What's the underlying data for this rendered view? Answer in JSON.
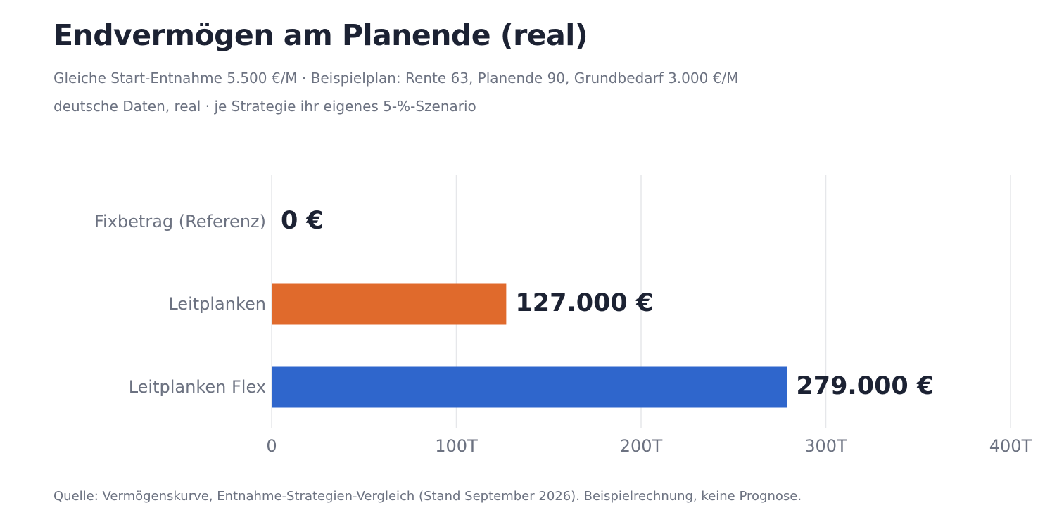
{
  "header": {
    "title": "Endvermögen am Planende (real)",
    "subtitle_line1": "Gleiche Start-Entnahme 5.500 €/M · Beispielplan: Rente 63, Planende 90, Grundbedarf 3.000 €/M",
    "subtitle_line2": "deutsche Daten, real · je Strategie ihr eigenes 5-%-Szenario"
  },
  "footer": {
    "source": "Quelle: Vermögenskurve, Entnahme-Strategien-Vergleich (Stand September 2026). Beispielrechnung, keine Prognose."
  },
  "chart_data": {
    "type": "bar",
    "orientation": "horizontal",
    "title": "Endvermögen am Planende (real)",
    "categories": [
      "Fixbetrag (Referenz)",
      "Leitplanken",
      "Leitplanken Flex"
    ],
    "values": [
      0,
      127000,
      279000
    ],
    "value_labels": [
      "0 €",
      "127.000 €",
      "279.000 €"
    ],
    "bar_colors": [
      "#e06a2c",
      "#e06a2c",
      "#2f66cc"
    ],
    "xlim": [
      0,
      400000
    ],
    "x_ticks": [
      0,
      100000,
      200000,
      300000,
      400000
    ],
    "x_tick_labels": [
      "0",
      "100T",
      "200T",
      "300T",
      "400T"
    ],
    "xlabel": "",
    "ylabel": "",
    "grid": true
  }
}
